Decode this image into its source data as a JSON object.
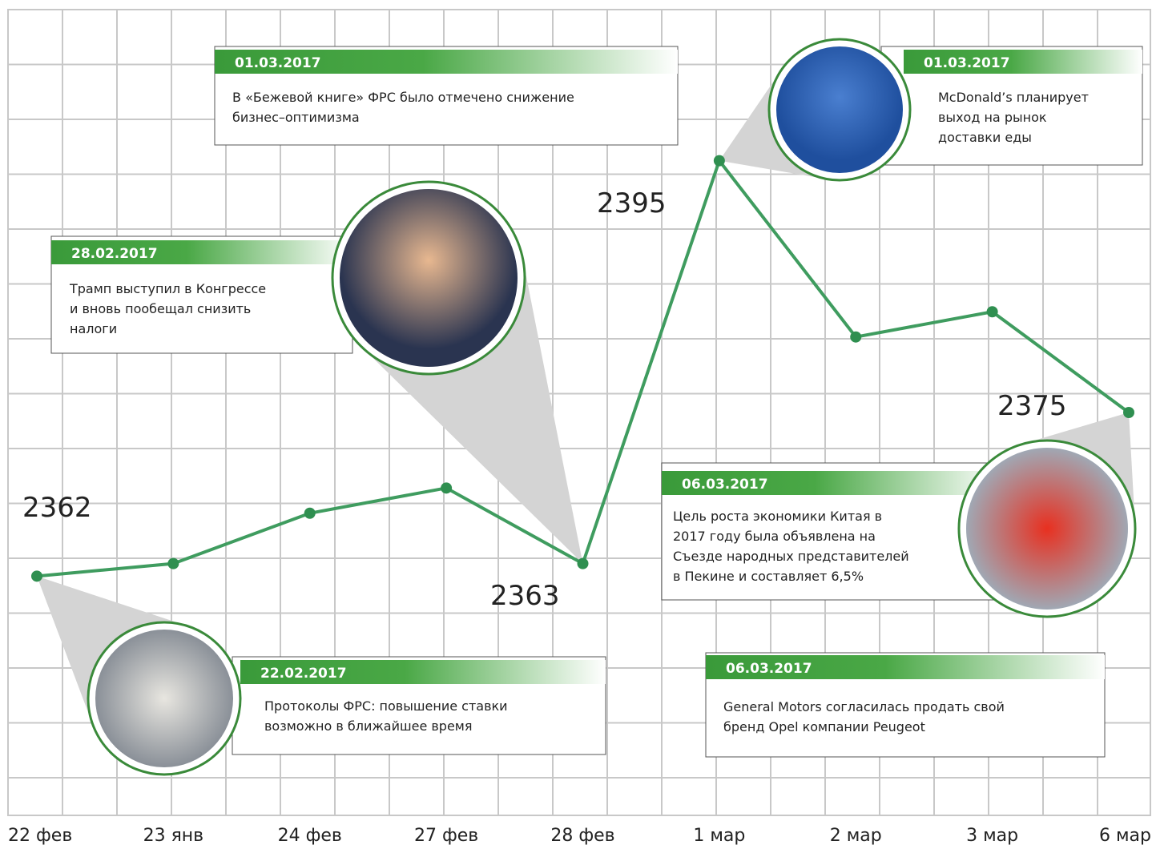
{
  "chart_data": {
    "type": "line",
    "categories": [
      "22 фев",
      "23 янв",
      "24 фев",
      "27 фев",
      "28 фев",
      "1 мар",
      "2 мар",
      "3 мар",
      "6 мар"
    ],
    "values": [
      2362,
      2363,
      2367,
      2369,
      2363,
      2395,
      2381,
      2383,
      2375
    ],
    "color": "#3f9c5f",
    "ylim": [
      2343,
      2407
    ],
    "annotations": [
      {
        "date": "01.03.2017",
        "lines": [
          "В «Бежевой книге» ФРС было отмечено снижение",
          "бизнес–оптимизма"
        ]
      },
      {
        "date": "01.03.2017",
        "lines": [
          "McDonald’s планирует",
          "выход на рынок",
          "доставки еды"
        ]
      },
      {
        "date": "28.02.2017",
        "lines": [
          "Трамп выступил в Конгрессе",
          "и вновь пообещал снизить",
          "налоги"
        ]
      },
      {
        "date": "22.02.2017",
        "lines": [
          "Протоколы ФРС:  повышение ставки",
          "возможно в ближайшее время"
        ]
      },
      {
        "date": "06.03.2017",
        "lines": [
          "Цель роста экономики Китая в",
          "2017 году была объявлена на",
          "Съезде народных представителей",
          "в Пекине и составляет 6,5%"
        ]
      },
      {
        "date": "06.03.2017",
        "lines": [
          "General Motors согласилась продать свой",
          "бренд Opel компании Peugeot"
        ]
      }
    ]
  }
}
